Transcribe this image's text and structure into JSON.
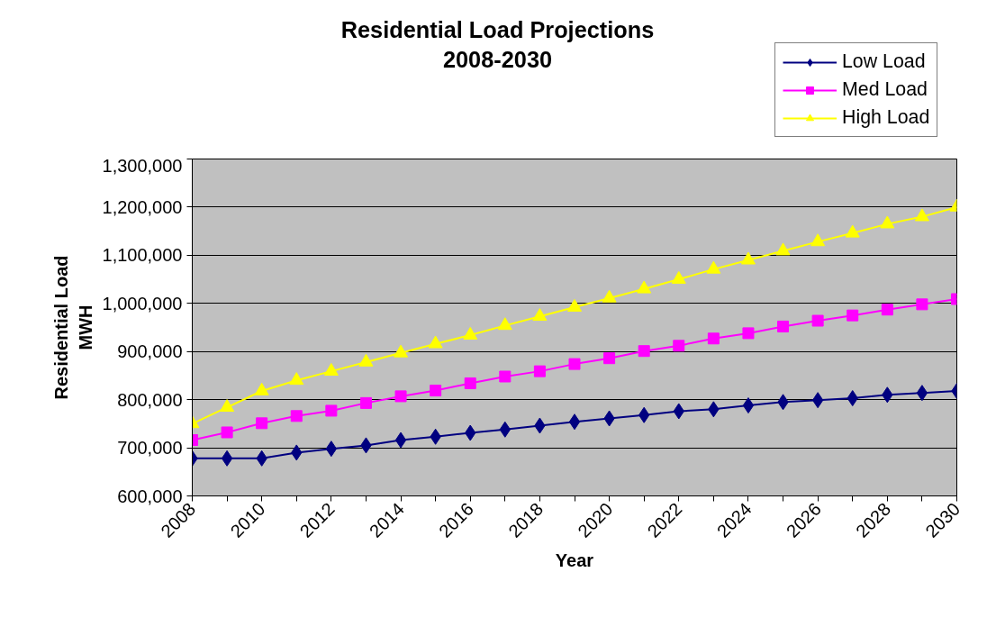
{
  "chart_data": {
    "type": "line",
    "title": "Residential Load Projections\n2008-2030",
    "xlabel": "Year",
    "ylabel": "Residential Load\nMWH",
    "x": [
      2008,
      2009,
      2010,
      2011,
      2012,
      2013,
      2014,
      2015,
      2016,
      2017,
      2018,
      2019,
      2020,
      2021,
      2022,
      2023,
      2024,
      2025,
      2026,
      2027,
      2028,
      2029,
      2030
    ],
    "series": [
      {
        "name": "Low Load",
        "color": "#000080",
        "marker": "diamond",
        "values": [
          678000,
          678000,
          678000,
          690000,
          698000,
          705000,
          716000,
          723000,
          731000,
          738000,
          746000,
          754000,
          761000,
          768000,
          776000,
          780000,
          788000,
          795000,
          799000,
          803000,
          810000,
          814000,
          818000
        ]
      },
      {
        "name": "Med Load",
        "color": "#ff00ff",
        "marker": "square",
        "values": [
          716000,
          732000,
          751000,
          766000,
          777000,
          793000,
          807000,
          819000,
          834000,
          848000,
          859000,
          874000,
          886000,
          901000,
          912000,
          927000,
          938000,
          952000,
          964000,
          975000,
          987000,
          998000,
          1009000
        ]
      },
      {
        "name": "High Load",
        "color": "#ffff00",
        "marker": "triangle",
        "values": [
          750000,
          784000,
          818000,
          840000,
          859000,
          878000,
          897000,
          916000,
          934000,
          954000,
          973000,
          992000,
          1011000,
          1030000,
          1050000,
          1071000,
          1090000,
          1109000,
          1128000,
          1146000,
          1165000,
          1180000,
          1200000
        ]
      }
    ],
    "xlim": [
      2008,
      2030
    ],
    "xticks": [
      2008,
      {
        "value": 2009,
        "label": null
      },
      2010,
      {
        "value": 2011,
        "label": null
      },
      2012,
      {
        "value": 2013,
        "label": null
      },
      2014,
      {
        "value": 2015,
        "label": null
      },
      2016,
      {
        "value": 2017,
        "label": null
      },
      2018,
      {
        "value": 2019,
        "label": null
      },
      2020,
      {
        "value": 2021,
        "label": null
      },
      2022,
      {
        "value": 2023,
        "label": null
      },
      2024,
      {
        "value": 2025,
        "label": null
      },
      2026,
      {
        "value": 2027,
        "label": null
      },
      2028,
      {
        "value": 2029,
        "label": null
      },
      2030
    ],
    "ylim": [
      600000,
      1300000
    ],
    "yticks": [
      {
        "value": 600000,
        "label": "600,000"
      },
      {
        "value": 700000,
        "label": "700,000"
      },
      {
        "value": 800000,
        "label": "800,000"
      },
      {
        "value": 900000,
        "label": "900,000"
      },
      {
        "value": 1000000,
        "label": "1,000,000"
      },
      {
        "value": 1100000,
        "label": "1,100,000"
      },
      {
        "value": 1200000,
        "label": "1,200,000"
      },
      {
        "value": 1300000,
        "label": "1,300,000"
      }
    ],
    "grid": "y",
    "legend": "top right",
    "line_style": "solid"
  }
}
